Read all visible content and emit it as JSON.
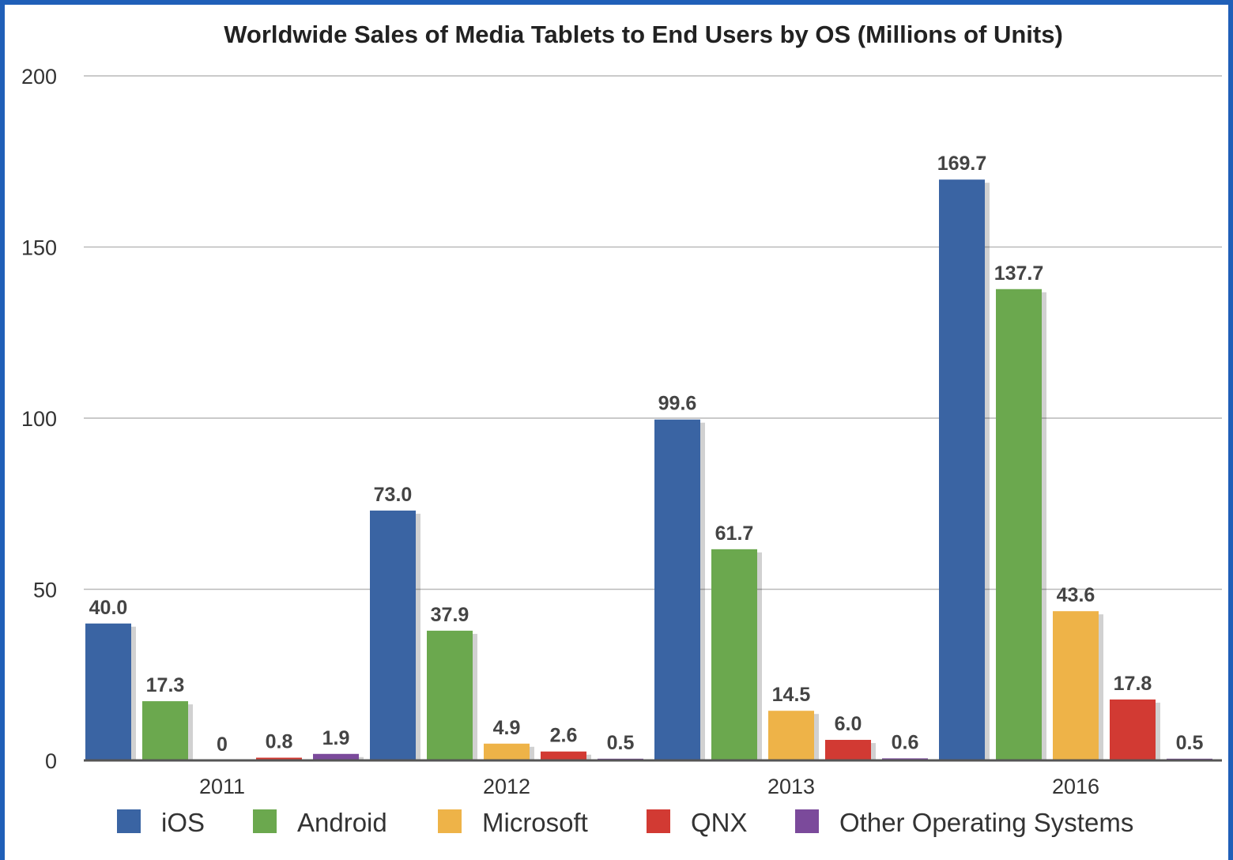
{
  "colors": {
    "iOS": "#3a64a3",
    "Android": "#6ba84e",
    "Microsoft": "#eeb348",
    "QNX": "#d23a33",
    "Other Operating Systems": "#7b4a9b"
  },
  "chart_data": {
    "type": "bar",
    "title": "Worldwide Sales of Media Tablets to End Users by OS (Millions of Units)",
    "xlabel": "",
    "ylabel": "",
    "ylim": [
      0,
      200
    ],
    "yticks": [
      0,
      50,
      100,
      150,
      200
    ],
    "grid": true,
    "legend_position": "bottom",
    "categories": [
      "2011",
      "2012",
      "2013",
      "2016"
    ],
    "series": [
      {
        "name": "iOS",
        "values": [
          40.0,
          73.0,
          99.6,
          169.7
        ],
        "labels": [
          "40.0",
          "73.0",
          "99.6",
          "169.7"
        ]
      },
      {
        "name": "Android",
        "values": [
          17.3,
          37.9,
          61.7,
          137.7
        ],
        "labels": [
          "17.3",
          "37.9",
          "61.7",
          "137.7"
        ]
      },
      {
        "name": "Microsoft",
        "values": [
          0,
          4.9,
          14.5,
          43.6
        ],
        "labels": [
          "0",
          "4.9",
          "14.5",
          "43.6"
        ]
      },
      {
        "name": "QNX",
        "values": [
          0.8,
          2.6,
          6.0,
          17.8
        ],
        "labels": [
          "0.8",
          "2.6",
          "6.0",
          "17.8"
        ]
      },
      {
        "name": "Other Operating Systems",
        "values": [
          1.9,
          0.5,
          0.6,
          0.5
        ],
        "labels": [
          "1.9",
          "0.5",
          "0.6",
          "0.5"
        ]
      }
    ]
  }
}
